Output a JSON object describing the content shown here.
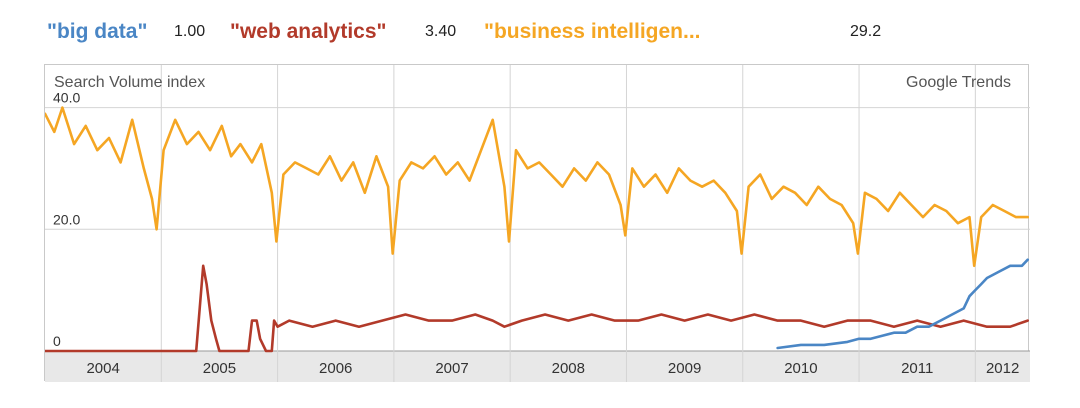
{
  "legend": [
    {
      "term": "\"big data\"",
      "average": "1.00",
      "color": "#4a86c5"
    },
    {
      "term": "\"web analytics\"",
      "average": "3.40",
      "color": "#b23a2a"
    },
    {
      "term": "\"business intelligen...",
      "average": "29.2",
      "color": "#f5a623"
    }
  ],
  "chart_data": {
    "type": "line",
    "title": "",
    "ylabel": "Search Volume index",
    "brand": "Google Trends",
    "xlabel": "",
    "x_tick_labels": [
      "2004",
      "2005",
      "2006",
      "2007",
      "2008",
      "2009",
      "2010",
      "2011",
      "2012"
    ],
    "y_tick_labels": [
      "0",
      "20.0",
      "40.0"
    ],
    "xlim": [
      2004.0,
      2012.47
    ],
    "ylim": [
      0,
      47
    ],
    "grid": true,
    "series": [
      {
        "name": "\"business intelligen...",
        "color": "#f5a623",
        "x": [
          2004.0,
          2004.08,
          2004.15,
          2004.25,
          2004.35,
          2004.45,
          2004.55,
          2004.65,
          2004.75,
          2004.85,
          2004.92,
          2004.96,
          2005.02,
          2005.12,
          2005.22,
          2005.32,
          2005.42,
          2005.52,
          2005.6,
          2005.68,
          2005.78,
          2005.86,
          2005.95,
          2005.99,
          2006.05,
          2006.15,
          2006.25,
          2006.35,
          2006.45,
          2006.55,
          2006.65,
          2006.75,
          2006.85,
          2006.95,
          2006.99,
          2007.05,
          2007.15,
          2007.25,
          2007.35,
          2007.45,
          2007.55,
          2007.65,
          2007.75,
          2007.85,
          2007.95,
          2007.99,
          2008.05,
          2008.15,
          2008.25,
          2008.35,
          2008.45,
          2008.55,
          2008.65,
          2008.75,
          2008.85,
          2008.95,
          2008.99,
          2009.05,
          2009.15,
          2009.25,
          2009.35,
          2009.45,
          2009.55,
          2009.65,
          2009.75,
          2009.85,
          2009.95,
          2009.99,
          2010.05,
          2010.15,
          2010.25,
          2010.35,
          2010.45,
          2010.55,
          2010.65,
          2010.75,
          2010.85,
          2010.95,
          2010.99,
          2011.05,
          2011.15,
          2011.25,
          2011.35,
          2011.45,
          2011.55,
          2011.65,
          2011.75,
          2011.85,
          2011.95,
          2011.99,
          2012.05,
          2012.15,
          2012.25,
          2012.35,
          2012.45
        ],
        "values": [
          39,
          36,
          40,
          34,
          37,
          33,
          35,
          31,
          38,
          30,
          25,
          20,
          33,
          38,
          34,
          36,
          33,
          37,
          32,
          34,
          31,
          34,
          26,
          18,
          29,
          31,
          30,
          29,
          32,
          28,
          31,
          26,
          32,
          27,
          16,
          28,
          31,
          30,
          32,
          29,
          31,
          28,
          33,
          38,
          27,
          18,
          33,
          30,
          31,
          29,
          27,
          30,
          28,
          31,
          29,
          24,
          19,
          30,
          27,
          29,
          26,
          30,
          28,
          27,
          28,
          26,
          23,
          16,
          27,
          29,
          25,
          27,
          26,
          24,
          27,
          25,
          24,
          21,
          16,
          26,
          25,
          23,
          26,
          24,
          22,
          24,
          23,
          21,
          22,
          14,
          22,
          24,
          23,
          22,
          22
        ]
      },
      {
        "name": "\"web analytics\"",
        "color": "#b23a2a",
        "x": [
          2004.0,
          2005.3,
          2005.36,
          2005.39,
          2005.43,
          2005.47,
          2005.5,
          2005.6,
          2005.75,
          2005.78,
          2005.82,
          2005.85,
          2005.9,
          2005.95,
          2005.97,
          2006.0,
          2006.1,
          2006.3,
          2006.5,
          2006.7,
          2006.9,
          2007.1,
          2007.3,
          2007.5,
          2007.7,
          2007.85,
          2007.95,
          2008.1,
          2008.3,
          2008.5,
          2008.7,
          2008.9,
          2009.1,
          2009.3,
          2009.5,
          2009.7,
          2009.9,
          2010.1,
          2010.3,
          2010.5,
          2010.7,
          2010.9,
          2011.1,
          2011.3,
          2011.5,
          2011.7,
          2011.9,
          2012.1,
          2012.3,
          2012.45
        ],
        "values": [
          0,
          0,
          14,
          11,
          5,
          2,
          0,
          0,
          0,
          5,
          5,
          2,
          0,
          0,
          5,
          4,
          5,
          4,
          5,
          4,
          5,
          6,
          5,
          5,
          6,
          5,
          4,
          5,
          6,
          5,
          6,
          5,
          5,
          6,
          5,
          6,
          5,
          6,
          5,
          5,
          4,
          5,
          5,
          4,
          5,
          4,
          5,
          4,
          4,
          5
        ]
      },
      {
        "name": "\"big data\"",
        "color": "#4a86c5",
        "x": [
          2010.3,
          2010.5,
          2010.7,
          2010.9,
          2011.0,
          2011.1,
          2011.2,
          2011.3,
          2011.4,
          2011.5,
          2011.6,
          2011.7,
          2011.8,
          2011.9,
          2011.95,
          2012.0,
          2012.05,
          2012.1,
          2012.2,
          2012.3,
          2012.4,
          2012.45
        ],
        "values": [
          0.5,
          1,
          1,
          1.5,
          2,
          2,
          2.5,
          3,
          3,
          4,
          4,
          5,
          6,
          7,
          9,
          10,
          11,
          12,
          13,
          14,
          14,
          15
        ]
      }
    ]
  }
}
